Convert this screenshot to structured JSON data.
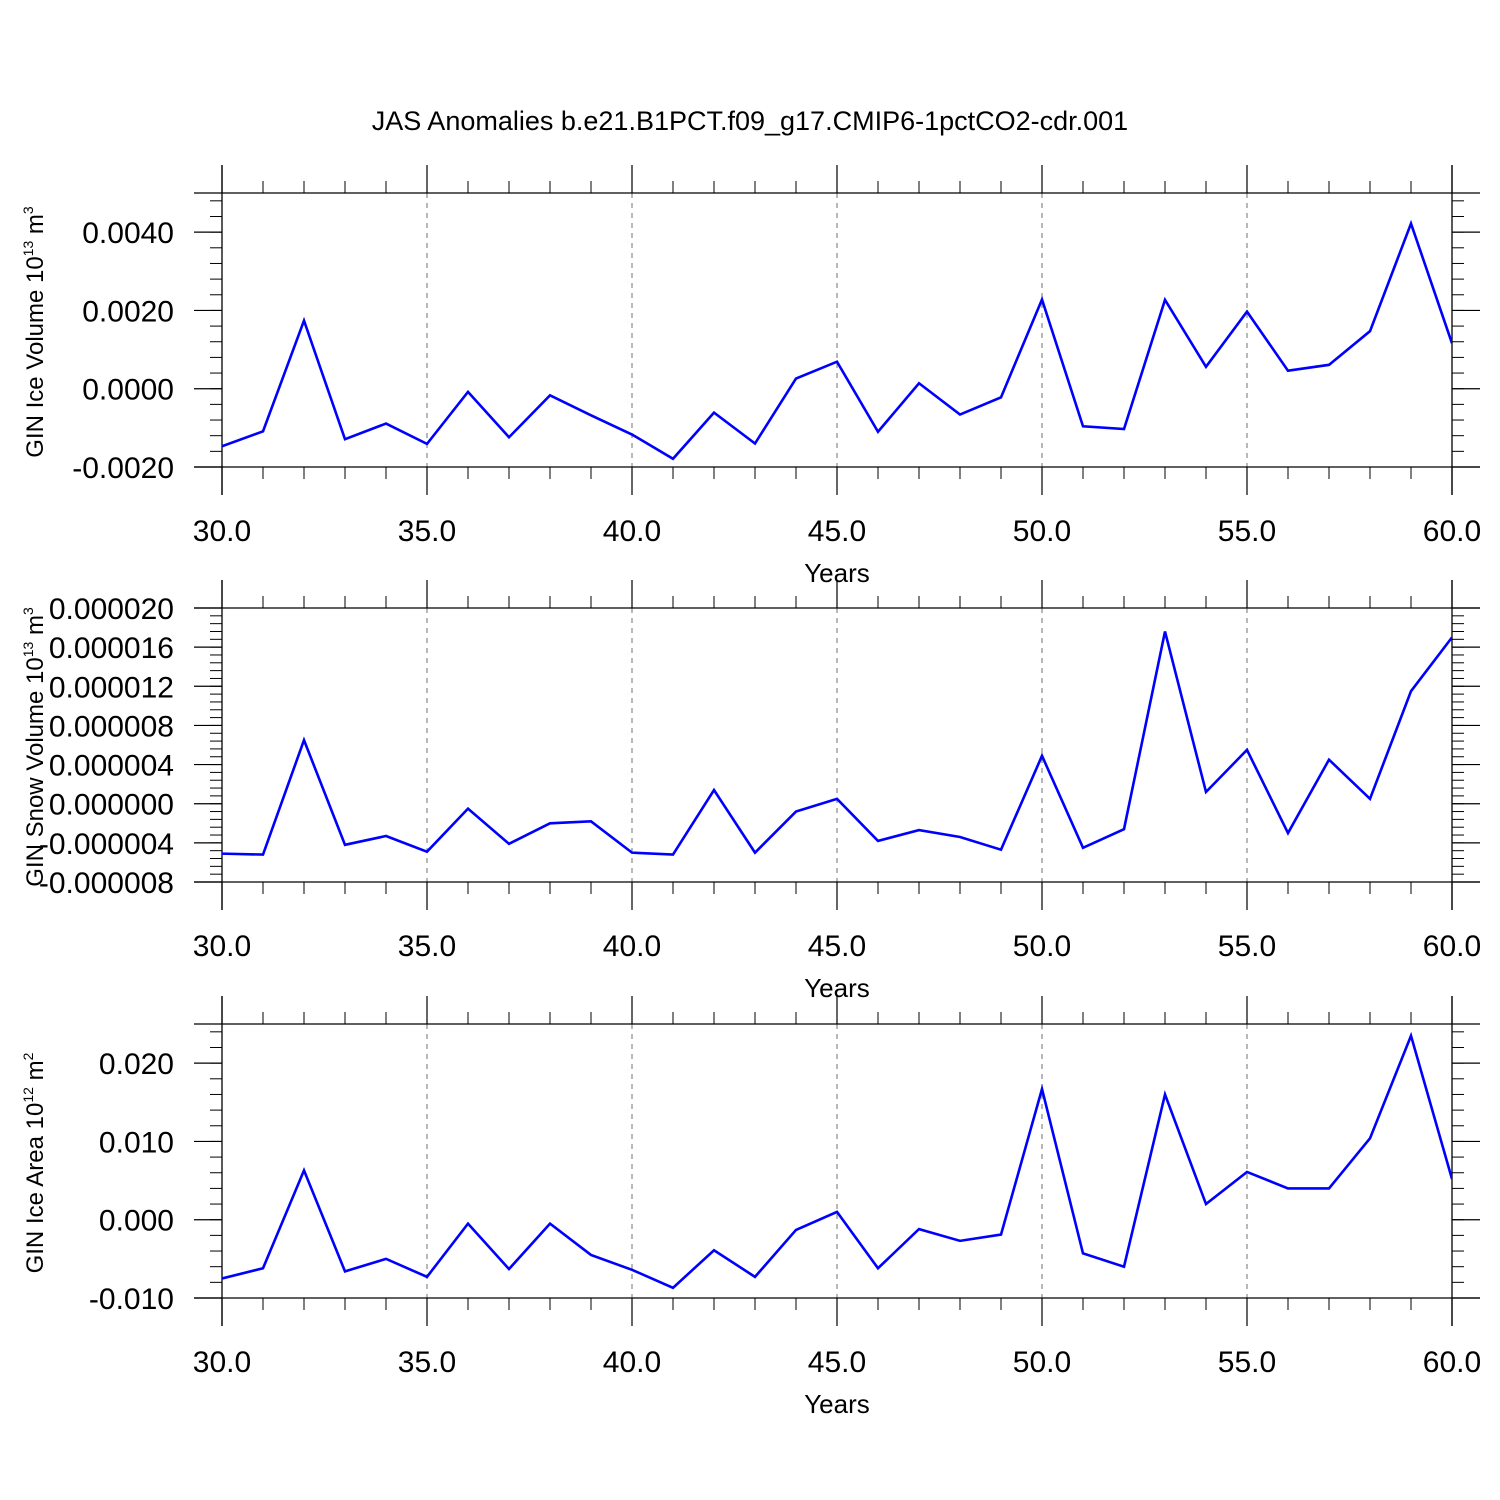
{
  "title": "JAS Anomalies b.e21.B1PCT.f09_g17.CMIP6-1pctCO2-cdr.001",
  "colors": {
    "line": "#0000ff",
    "axis": "#000000",
    "grid": "#888888",
    "background": "#ffffff"
  },
  "chart_data": [
    {
      "type": "line",
      "xlabel": "Years",
      "ylabel": {
        "text": "GIN Ice Volume 10",
        "exponent": "13",
        "unit": " m",
        "unit_exponent": "3"
      },
      "xlim": [
        30,
        60
      ],
      "ylim": [
        -0.002,
        0.005
      ],
      "x_ticks": [
        "30.0",
        "35.0",
        "40.0",
        "45.0",
        "50.0",
        "55.0",
        "60.0"
      ],
      "y_ticks": [
        {
          "value": -0.002,
          "label": "-0.0020"
        },
        {
          "value": 0.0,
          "label": "0.0000"
        },
        {
          "value": 0.002,
          "label": "0.0020"
        },
        {
          "value": 0.004,
          "label": "0.0040"
        }
      ],
      "grid": "vertical dashed at major x ticks",
      "x": [
        30,
        31,
        32,
        33,
        34,
        35,
        36,
        37,
        38,
        39,
        40,
        41,
        42,
        43,
        44,
        45,
        46,
        47,
        48,
        49,
        50,
        51,
        52,
        53,
        54,
        55,
        56,
        57,
        58,
        59,
        60
      ],
      "series": [
        {
          "values": [
            -0.00147,
            -0.00109,
            0.00174,
            -0.00129,
            -0.00089,
            -0.00141,
            -8e-05,
            -0.00124,
            -0.00017,
            -0.00068,
            -0.00117,
            -0.00179,
            -0.00061,
            -0.0014,
            0.00026,
            0.00069,
            -0.0011,
            0.00014,
            -0.00066,
            -0.00022,
            0.00228,
            -0.00096,
            -0.00103,
            0.00227,
            0.00056,
            0.00197,
            0.00046,
            0.00061,
            0.00147,
            0.00422,
            0.00116
          ]
        }
      ]
    },
    {
      "type": "line",
      "xlabel": "Years",
      "ylabel": {
        "text": "GIN Snow Volume 10",
        "exponent": "13",
        "unit": " m",
        "unit_exponent": "3"
      },
      "xlim": [
        30,
        60
      ],
      "ylim": [
        -8e-06,
        2e-05
      ],
      "x_ticks": [
        "30.0",
        "35.0",
        "40.0",
        "45.0",
        "50.0",
        "55.0",
        "60.0"
      ],
      "y_ticks": [
        {
          "value": -8e-06,
          "label": "-0.000008"
        },
        {
          "value": -4e-06,
          "label": "-0.000004"
        },
        {
          "value": 0.0,
          "label": "0.000000"
        },
        {
          "value": 4e-06,
          "label": "0.000004"
        },
        {
          "value": 8e-06,
          "label": "0.000008"
        },
        {
          "value": 1.2e-05,
          "label": "0.000012"
        },
        {
          "value": 1.6e-05,
          "label": "0.000016"
        },
        {
          "value": 2e-05,
          "label": "0.000020"
        }
      ],
      "grid": "vertical dashed at major x ticks",
      "x": [
        30,
        31,
        32,
        33,
        34,
        35,
        36,
        37,
        38,
        39,
        40,
        41,
        42,
        43,
        44,
        45,
        46,
        47,
        48,
        49,
        50,
        51,
        52,
        53,
        54,
        55,
        56,
        57,
        58,
        59,
        60
      ],
      "series": [
        {
          "values": [
            -5.1e-06,
            -5.2e-06,
            6.5e-06,
            -4.2e-06,
            -3.3e-06,
            -4.9e-06,
            -5e-07,
            -4.1e-06,
            -2e-06,
            -1.8e-06,
            -5e-06,
            -5.2e-06,
            1.4e-06,
            -5e-06,
            -8e-07,
            5e-07,
            -3.8e-06,
            -2.7e-06,
            -3.4e-06,
            -4.7e-06,
            4.9e-06,
            -4.5e-06,
            -2.6e-06,
            1.76e-05,
            1.2e-06,
            5.5e-06,
            -3e-06,
            4.5e-06,
            5e-07,
            1.15e-05,
            1.7e-05
          ]
        }
      ]
    },
    {
      "type": "line",
      "xlabel": "Years",
      "ylabel": {
        "text": "GIN Ice Area 10",
        "exponent": "12",
        "unit": " m",
        "unit_exponent": "2"
      },
      "xlim": [
        30,
        60
      ],
      "ylim": [
        -0.01,
        0.025
      ],
      "x_ticks": [
        "30.0",
        "35.0",
        "40.0",
        "45.0",
        "50.0",
        "55.0",
        "60.0"
      ],
      "y_ticks": [
        {
          "value": -0.01,
          "label": "-0.010"
        },
        {
          "value": 0.0,
          "label": "0.000"
        },
        {
          "value": 0.01,
          "label": "0.010"
        },
        {
          "value": 0.02,
          "label": "0.020"
        }
      ],
      "grid": "vertical dashed at major x ticks",
      "x": [
        30,
        31,
        32,
        33,
        34,
        35,
        36,
        37,
        38,
        39,
        40,
        41,
        42,
        43,
        44,
        45,
        46,
        47,
        48,
        49,
        50,
        51,
        52,
        53,
        54,
        55,
        56,
        57,
        58,
        59,
        60
      ],
      "series": [
        {
          "values": [
            -0.0075,
            -0.0062,
            0.0063,
            -0.0066,
            -0.005,
            -0.0073,
            -0.0005,
            -0.0063,
            -0.0005,
            -0.0045,
            -0.0064,
            -0.0087,
            -0.0039,
            -0.0073,
            -0.0013,
            0.001,
            -0.0062,
            -0.0012,
            -0.0027,
            -0.0019,
            0.0167,
            -0.0043,
            -0.006,
            0.016,
            0.002,
            0.0061,
            0.004,
            0.004,
            0.0104,
            0.0235,
            0.0052
          ]
        }
      ]
    }
  ]
}
